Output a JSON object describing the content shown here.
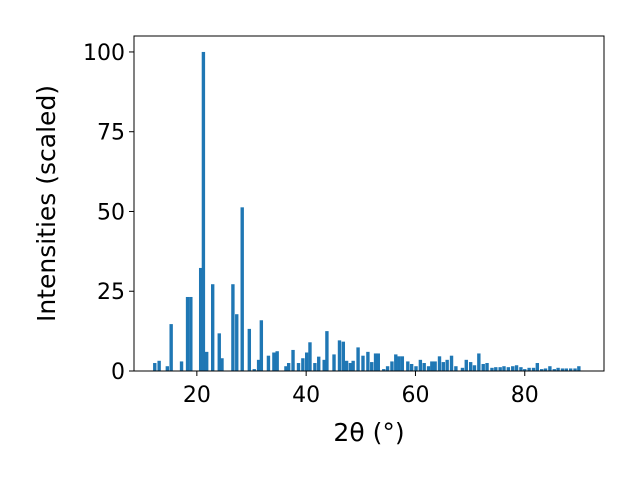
{
  "chart_data": {
    "type": "bar",
    "xlabel": "2θ (°)",
    "ylabel": "Intensities (scaled)",
    "xlim": [
      8.5,
      94.5
    ],
    "ylim": [
      0,
      105
    ],
    "xticks": [
      20,
      40,
      60,
      80
    ],
    "yticks": [
      0,
      25,
      50,
      75,
      100
    ],
    "grid": false,
    "bar_color": "#1f77b4",
    "x": [
      12.3,
      13.1,
      14.6,
      15.3,
      17.2,
      18.3,
      18.9,
      20.7,
      21.2,
      21.8,
      22.9,
      24.1,
      24.6,
      26.6,
      27.3,
      28.3,
      29.6,
      30.5,
      31.3,
      31.8,
      33.1,
      34.1,
      34.7,
      36.3,
      36.8,
      37.6,
      38.6,
      39.4,
      40.1,
      40.7,
      41.6,
      42.3,
      43.3,
      43.8,
      45.1,
      46.1,
      46.8,
      47.4,
      48.1,
      48.6,
      49.5,
      50.4,
      51.3,
      52.0,
      52.7,
      53.2,
      54.2,
      54.9,
      55.7,
      56.4,
      57.0,
      57.6,
      58.6,
      59.3,
      60.1,
      60.9,
      61.6,
      62.4,
      63.0,
      63.6,
      64.4,
      65.1,
      65.8,
      66.6,
      67.4,
      68.6,
      69.3,
      70.1,
      70.8,
      71.6,
      72.4,
      73.1,
      74.0,
      74.7,
      75.5,
      76.2,
      77.0,
      77.8,
      78.5,
      79.3,
      80.0,
      80.8,
      81.6,
      82.3,
      83.1,
      83.8,
      84.6,
      85.4,
      86.1,
      86.9,
      87.6,
      88.4,
      89.2,
      89.9
    ],
    "values": [
      2.5,
      3.2,
      1.5,
      14.7,
      3.0,
      23.2,
      23.2,
      32.3,
      100.0,
      6.0,
      27.2,
      11.8,
      4.0,
      27.2,
      17.8,
      51.3,
      13.2,
      0.6,
      3.5,
      15.9,
      4.8,
      5.8,
      6.2,
      1.5,
      2.5,
      6.6,
      2.5,
      4.0,
      5.8,
      9.0,
      2.5,
      4.5,
      3.5,
      12.5,
      5.2,
      9.6,
      9.2,
      3.2,
      2.5,
      3.2,
      7.4,
      4.8,
      6.0,
      2.8,
      5.5,
      5.5,
      0.6,
      1.5,
      3.0,
      5.2,
      4.6,
      4.6,
      3.0,
      2.2,
      1.5,
      3.5,
      2.5,
      1.5,
      3.0,
      3.0,
      4.6,
      2.8,
      3.5,
      4.8,
      1.5,
      1.0,
      3.5,
      2.8,
      1.8,
      5.5,
      2.2,
      2.5,
      1.0,
      1.2,
      1.2,
      1.5,
      1.2,
      1.5,
      1.8,
      1.2,
      0.6,
      1.0,
      1.0,
      2.5,
      0.6,
      0.8,
      1.5,
      0.6,
      1.0,
      0.8,
      0.8,
      0.8,
      0.8,
      1.5
    ]
  }
}
